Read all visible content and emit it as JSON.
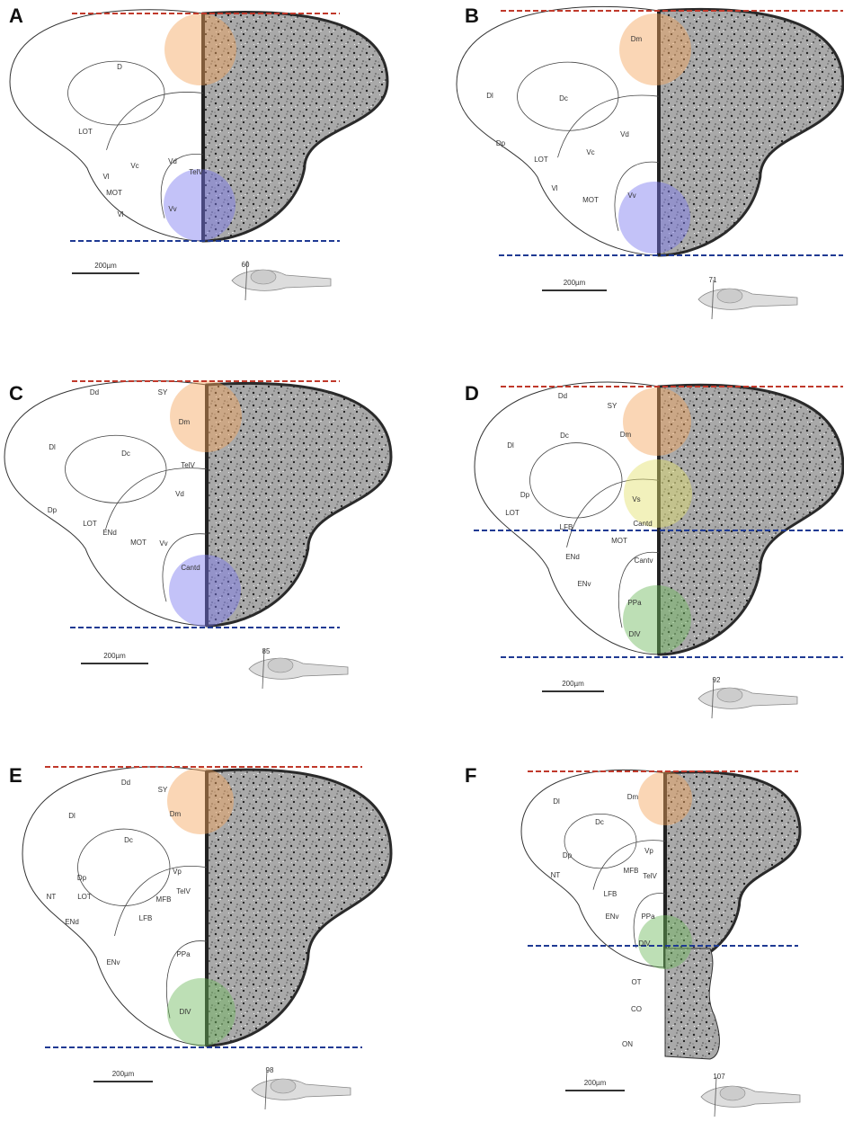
{
  "panels": [
    {
      "letter": "A",
      "scale_bar": "200µm",
      "section": "60",
      "labels": [
        "D",
        "LOT",
        "Vc",
        "Vd",
        "TelV",
        "Vl",
        "MOT",
        "Vv",
        "Vl"
      ]
    },
    {
      "letter": "B",
      "scale_bar": "200µm",
      "section": "71",
      "labels": [
        "Dm",
        "Dl",
        "Dc",
        "Vd",
        "Dp",
        "LOT",
        "Vc",
        "Vl",
        "MOT",
        "Vv"
      ]
    },
    {
      "letter": "C",
      "scale_bar": "200µm",
      "section": "85",
      "labels": [
        "Dd",
        "SY",
        "Dm",
        "Dl",
        "Dc",
        "TelV",
        "Vd",
        "Dp",
        "LOT",
        "ENd",
        "MOT",
        "Vv",
        "Cantd"
      ]
    },
    {
      "letter": "D",
      "scale_bar": "200µm",
      "section": "92",
      "labels": [
        "Dd",
        "SY",
        "Dl",
        "Dc",
        "Dm",
        "Vs",
        "Dp",
        "LOT",
        "LFB",
        "Cantd",
        "MOT",
        "ENd",
        "Cantv",
        "ENv",
        "PPa",
        "DlV"
      ]
    },
    {
      "letter": "E",
      "scale_bar": "200µm",
      "section": "98",
      "labels": [
        "Dd",
        "SY",
        "Dl",
        "Dm",
        "Dc",
        "Dp",
        "Vp",
        "NT",
        "LOT",
        "TelV",
        "MFB",
        "ENd",
        "LFB",
        "ENv",
        "PPa",
        "DlV"
      ]
    },
    {
      "letter": "F",
      "scale_bar": "200µm",
      "section": "107",
      "labels": [
        "Dm",
        "Dl",
        "Dc",
        "Vp",
        "Dp",
        "NT",
        "MFB",
        "TelV",
        "LFB",
        "ENv",
        "PPa",
        "DlV",
        "OT",
        "CO",
        "ON"
      ]
    }
  ]
}
